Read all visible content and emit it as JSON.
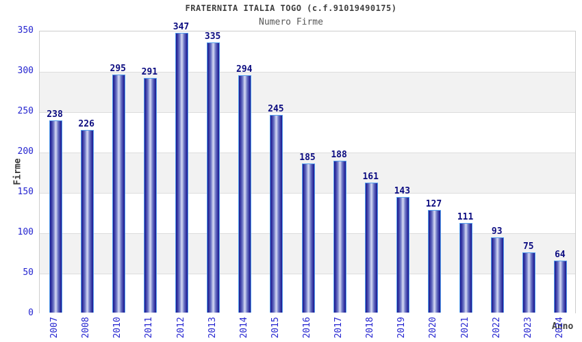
{
  "chart_data": {
    "type": "bar",
    "title": "FRATERNITA ITALIA TOGO (c.f.91019490175)",
    "subtitle": "Numero Firme",
    "xlabel": "Anno",
    "ylabel": "Firme",
    "categories": [
      "2007",
      "2008",
      "2010",
      "2011",
      "2012",
      "2013",
      "2014",
      "2015",
      "2016",
      "2017",
      "2018",
      "2019",
      "2020",
      "2021",
      "2022",
      "2023",
      "2024"
    ],
    "values": [
      238,
      226,
      295,
      291,
      347,
      335,
      294,
      245,
      185,
      188,
      161,
      143,
      127,
      111,
      93,
      75,
      64
    ],
    "ylim": [
      0,
      350
    ],
    "yticks": [
      0,
      50,
      100,
      150,
      200,
      250,
      300,
      350
    ],
    "grid": "horizontal-bands-alternating",
    "legend": "none",
    "colors": {
      "bar_edge": "#1c1c8e",
      "bar_center": "#d7dcf5",
      "bar_border": "#55a0ee",
      "tick_label": "#2424d0",
      "value_label": "#0b0b80",
      "band_gray": "#f2f2f2",
      "band_white": "#ffffff",
      "gridline": "#dcdcdc",
      "plot_border": "#cccccc",
      "title": "#3f3f3f",
      "subtitle": "#575757",
      "axis_title": "#383838"
    }
  }
}
